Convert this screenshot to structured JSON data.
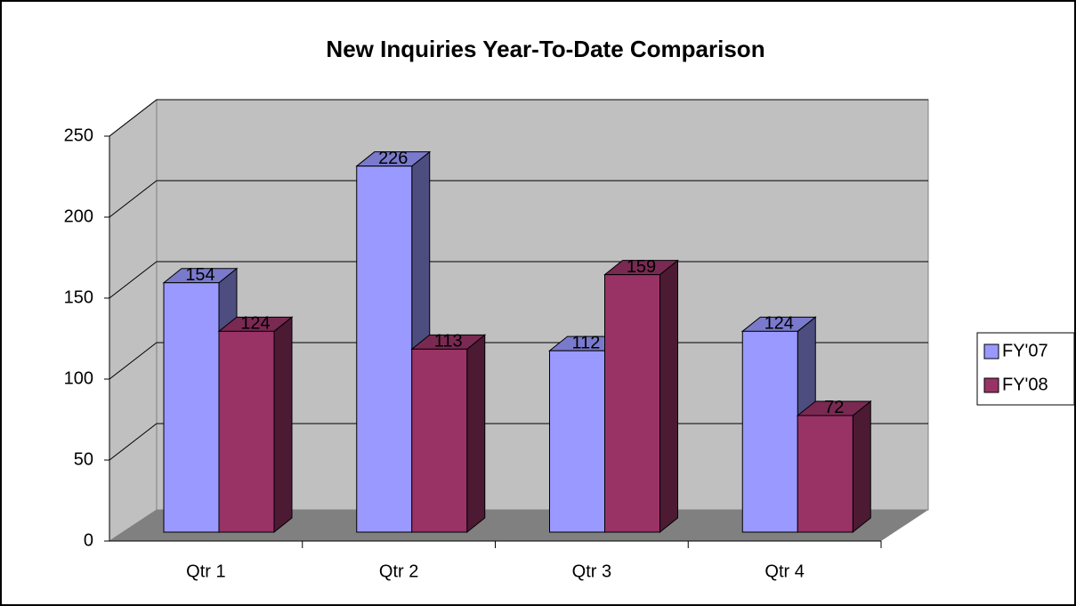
{
  "chart_data": {
    "type": "bar3d",
    "title": "New Inquiries Year-To-Date Comparison",
    "categories": [
      "Qtr 1",
      "Qtr 2",
      "Qtr 3",
      "Qtr 4"
    ],
    "series": [
      {
        "name": "FY'07",
        "color": "#9999ff",
        "values": [
          154,
          226,
          112,
          124
        ]
      },
      {
        "name": "FY'08",
        "color": "#993366",
        "values": [
          124,
          113,
          159,
          72
        ]
      }
    ],
    "ylim": [
      0,
      250
    ],
    "yticks": [
      0,
      50,
      100,
      150,
      200,
      250
    ],
    "grid": true,
    "legend": "right"
  }
}
